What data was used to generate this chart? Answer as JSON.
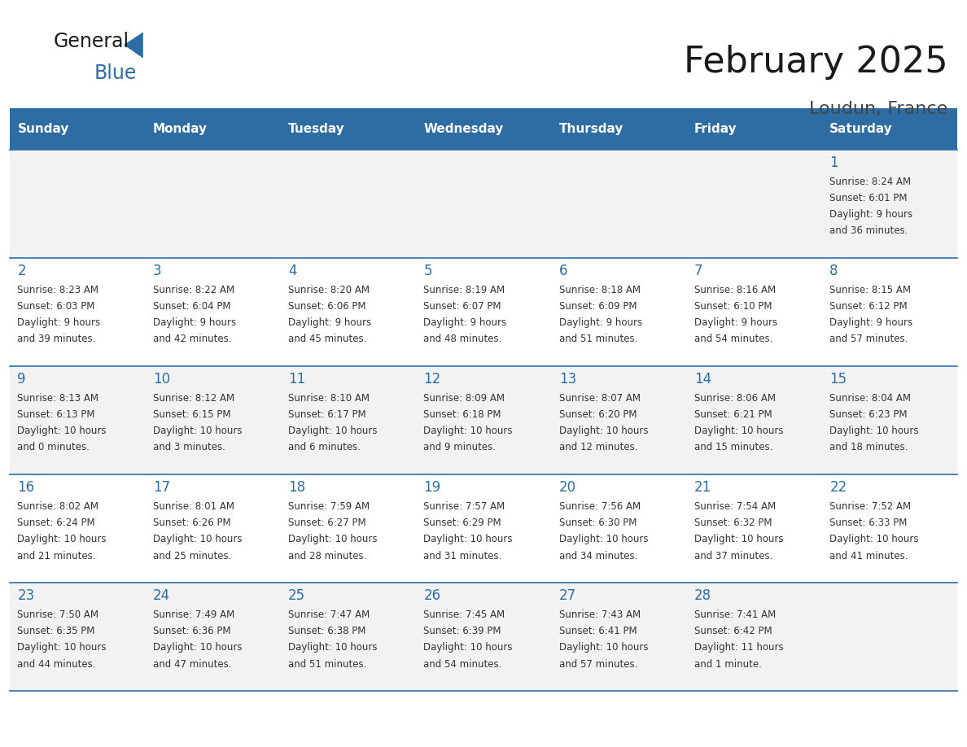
{
  "title": "February 2025",
  "subtitle": "Loudun, France",
  "header_bg": "#2E6DA4",
  "header_text_color": "#FFFFFF",
  "cell_bg_odd": "#F2F2F2",
  "cell_bg_even": "#FFFFFF",
  "grid_line_color": "#2E6DA4",
  "day_number_color": "#2E6DA4",
  "info_text_color": "#333333",
  "days_of_week": [
    "Sunday",
    "Monday",
    "Tuesday",
    "Wednesday",
    "Thursday",
    "Friday",
    "Saturday"
  ],
  "weeks": [
    [
      {
        "day": "",
        "info": ""
      },
      {
        "day": "",
        "info": ""
      },
      {
        "day": "",
        "info": ""
      },
      {
        "day": "",
        "info": ""
      },
      {
        "day": "",
        "info": ""
      },
      {
        "day": "",
        "info": ""
      },
      {
        "day": "1",
        "info": "Sunrise: 8:24 AM\nSunset: 6:01 PM\nDaylight: 9 hours\nand 36 minutes."
      }
    ],
    [
      {
        "day": "2",
        "info": "Sunrise: 8:23 AM\nSunset: 6:03 PM\nDaylight: 9 hours\nand 39 minutes."
      },
      {
        "day": "3",
        "info": "Sunrise: 8:22 AM\nSunset: 6:04 PM\nDaylight: 9 hours\nand 42 minutes."
      },
      {
        "day": "4",
        "info": "Sunrise: 8:20 AM\nSunset: 6:06 PM\nDaylight: 9 hours\nand 45 minutes."
      },
      {
        "day": "5",
        "info": "Sunrise: 8:19 AM\nSunset: 6:07 PM\nDaylight: 9 hours\nand 48 minutes."
      },
      {
        "day": "6",
        "info": "Sunrise: 8:18 AM\nSunset: 6:09 PM\nDaylight: 9 hours\nand 51 minutes."
      },
      {
        "day": "7",
        "info": "Sunrise: 8:16 AM\nSunset: 6:10 PM\nDaylight: 9 hours\nand 54 minutes."
      },
      {
        "day": "8",
        "info": "Sunrise: 8:15 AM\nSunset: 6:12 PM\nDaylight: 9 hours\nand 57 minutes."
      }
    ],
    [
      {
        "day": "9",
        "info": "Sunrise: 8:13 AM\nSunset: 6:13 PM\nDaylight: 10 hours\nand 0 minutes."
      },
      {
        "day": "10",
        "info": "Sunrise: 8:12 AM\nSunset: 6:15 PM\nDaylight: 10 hours\nand 3 minutes."
      },
      {
        "day": "11",
        "info": "Sunrise: 8:10 AM\nSunset: 6:17 PM\nDaylight: 10 hours\nand 6 minutes."
      },
      {
        "day": "12",
        "info": "Sunrise: 8:09 AM\nSunset: 6:18 PM\nDaylight: 10 hours\nand 9 minutes."
      },
      {
        "day": "13",
        "info": "Sunrise: 8:07 AM\nSunset: 6:20 PM\nDaylight: 10 hours\nand 12 minutes."
      },
      {
        "day": "14",
        "info": "Sunrise: 8:06 AM\nSunset: 6:21 PM\nDaylight: 10 hours\nand 15 minutes."
      },
      {
        "day": "15",
        "info": "Sunrise: 8:04 AM\nSunset: 6:23 PM\nDaylight: 10 hours\nand 18 minutes."
      }
    ],
    [
      {
        "day": "16",
        "info": "Sunrise: 8:02 AM\nSunset: 6:24 PM\nDaylight: 10 hours\nand 21 minutes."
      },
      {
        "day": "17",
        "info": "Sunrise: 8:01 AM\nSunset: 6:26 PM\nDaylight: 10 hours\nand 25 minutes."
      },
      {
        "day": "18",
        "info": "Sunrise: 7:59 AM\nSunset: 6:27 PM\nDaylight: 10 hours\nand 28 minutes."
      },
      {
        "day": "19",
        "info": "Sunrise: 7:57 AM\nSunset: 6:29 PM\nDaylight: 10 hours\nand 31 minutes."
      },
      {
        "day": "20",
        "info": "Sunrise: 7:56 AM\nSunset: 6:30 PM\nDaylight: 10 hours\nand 34 minutes."
      },
      {
        "day": "21",
        "info": "Sunrise: 7:54 AM\nSunset: 6:32 PM\nDaylight: 10 hours\nand 37 minutes."
      },
      {
        "day": "22",
        "info": "Sunrise: 7:52 AM\nSunset: 6:33 PM\nDaylight: 10 hours\nand 41 minutes."
      }
    ],
    [
      {
        "day": "23",
        "info": "Sunrise: 7:50 AM\nSunset: 6:35 PM\nDaylight: 10 hours\nand 44 minutes."
      },
      {
        "day": "24",
        "info": "Sunrise: 7:49 AM\nSunset: 6:36 PM\nDaylight: 10 hours\nand 47 minutes."
      },
      {
        "day": "25",
        "info": "Sunrise: 7:47 AM\nSunset: 6:38 PM\nDaylight: 10 hours\nand 51 minutes."
      },
      {
        "day": "26",
        "info": "Sunrise: 7:45 AM\nSunset: 6:39 PM\nDaylight: 10 hours\nand 54 minutes."
      },
      {
        "day": "27",
        "info": "Sunrise: 7:43 AM\nSunset: 6:41 PM\nDaylight: 10 hours\nand 57 minutes."
      },
      {
        "day": "28",
        "info": "Sunrise: 7:41 AM\nSunset: 6:42 PM\nDaylight: 11 hours\nand 1 minute."
      },
      {
        "day": "",
        "info": ""
      }
    ]
  ]
}
